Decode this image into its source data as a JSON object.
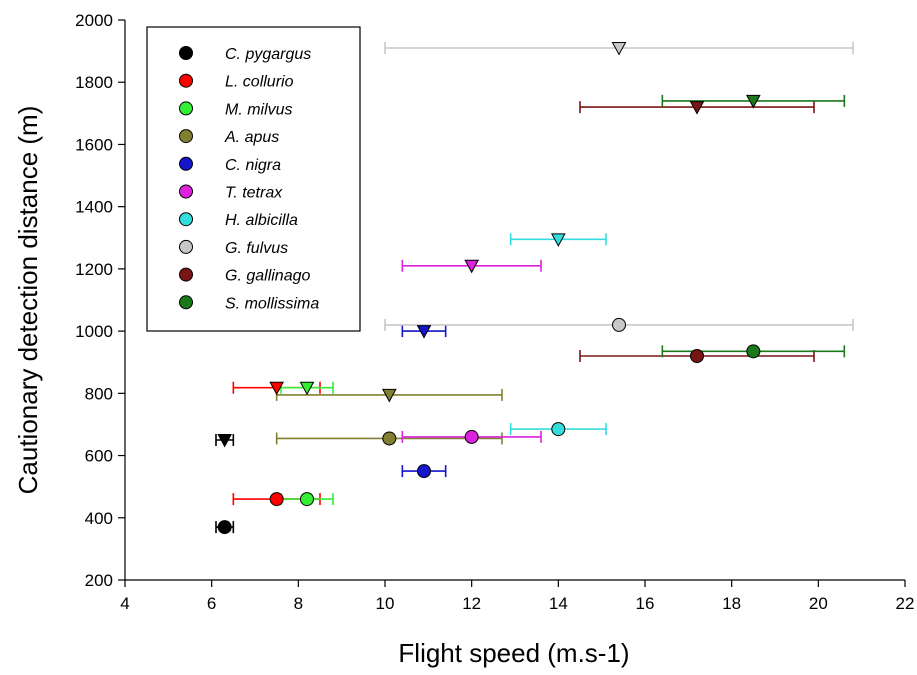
{
  "chart_data": {
    "type": "scatter",
    "title": "",
    "xlabel": "Flight speed (m.s-1)",
    "ylabel": "Cautionary detection distance (m)",
    "xlim": [
      4,
      22
    ],
    "ylim": [
      200,
      2000
    ],
    "xticks": [
      4,
      6,
      8,
      10,
      12,
      14,
      16,
      18,
      20,
      22
    ],
    "yticks": [
      200,
      400,
      600,
      800,
      1000,
      1200,
      1400,
      1600,
      1800,
      2000
    ],
    "grid": false,
    "legend_position": "top-left",
    "legend_marker": "circle",
    "series": [
      {
        "name": "C. pygargus",
        "color": "#000000",
        "circle": {
          "x": 6.3,
          "y": 370,
          "xerr": [
            6.1,
            6.5
          ]
        },
        "triangle": {
          "x": 6.3,
          "y": 650,
          "xerr": [
            6.1,
            6.5
          ]
        }
      },
      {
        "name": "L. collurio",
        "color": "#ff0000",
        "circle": {
          "x": 7.5,
          "y": 460,
          "xerr": [
            6.5,
            8.5
          ]
        },
        "triangle": {
          "x": 7.5,
          "y": 818,
          "xerr": [
            6.5,
            8.5
          ]
        }
      },
      {
        "name": "M. milvus",
        "color": "#33ee33",
        "circle": {
          "x": 8.2,
          "y": 460,
          "xerr": [
            7.6,
            8.8
          ]
        },
        "triangle": {
          "x": 8.2,
          "y": 818,
          "xerr": [
            7.6,
            8.8
          ]
        }
      },
      {
        "name": "A. apus",
        "color": "#808030",
        "circle": {
          "x": 10.1,
          "y": 655,
          "xerr": [
            7.5,
            12.7
          ]
        },
        "triangle": {
          "x": 10.1,
          "y": 795,
          "xerr": [
            7.5,
            12.7
          ]
        }
      },
      {
        "name": "C. nigra",
        "color": "#1515cc",
        "circle": {
          "x": 10.9,
          "y": 550,
          "xerr": [
            10.4,
            11.4
          ]
        },
        "triangle": {
          "x": 10.9,
          "y": 1000,
          "xerr": [
            10.4,
            11.4
          ]
        }
      },
      {
        "name": "T. tetrax",
        "color": "#dd22dd",
        "circle": {
          "x": 12.0,
          "y": 660,
          "xerr": [
            10.4,
            13.6
          ]
        },
        "triangle": {
          "x": 12.0,
          "y": 1210,
          "xerr": [
            10.4,
            13.6
          ]
        }
      },
      {
        "name": "H. albicilla",
        "color": "#33dddd",
        "circle": {
          "x": 14.0,
          "y": 685,
          "xerr": [
            12.9,
            15.1
          ]
        },
        "triangle": {
          "x": 14.0,
          "y": 1295,
          "xerr": [
            12.9,
            15.1
          ]
        }
      },
      {
        "name": "G. fulvus",
        "color": "#c8c8c8",
        "circle": {
          "x": 15.4,
          "y": 1020,
          "xerr": [
            10.0,
            20.8
          ]
        },
        "triangle": {
          "x": 15.4,
          "y": 1910,
          "xerr": [
            10.0,
            20.8
          ]
        }
      },
      {
        "name": "G. gallinago",
        "color": "#7a1515",
        "circle": {
          "x": 17.2,
          "y": 920,
          "xerr": [
            14.5,
            19.9
          ]
        },
        "triangle": {
          "x": 17.2,
          "y": 1720,
          "xerr": [
            14.5,
            19.9
          ]
        }
      },
      {
        "name": "S. mollissima",
        "color": "#1a7a1a",
        "circle": {
          "x": 18.5,
          "y": 935,
          "xerr": [
            16.4,
            20.6
          ]
        },
        "triangle": {
          "x": 18.5,
          "y": 1740,
          "xerr": [
            16.4,
            20.6
          ]
        }
      }
    ]
  }
}
